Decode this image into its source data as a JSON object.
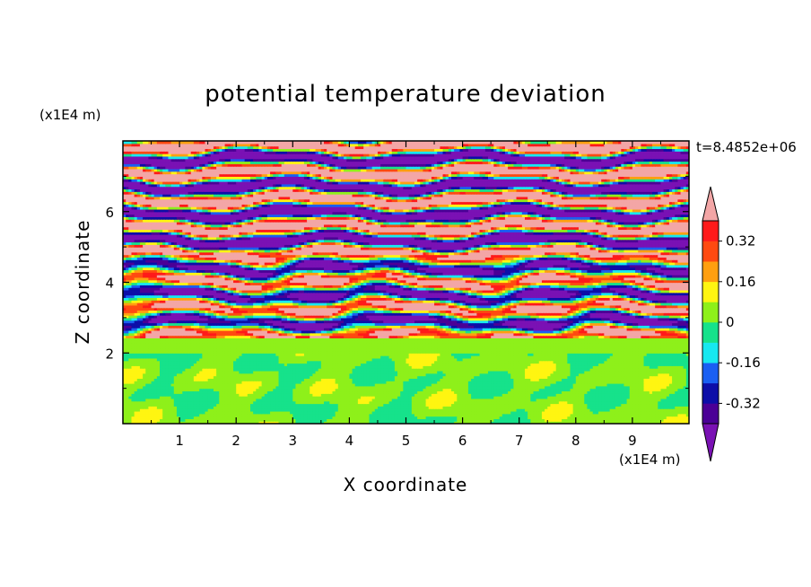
{
  "chart_data": {
    "type": "heatmap",
    "title": "potential temperature deviation",
    "xlabel": "X coordinate",
    "ylabel": "Z coordinate",
    "x_unit": "(x1E4 m)",
    "y_unit": "(x1E4 m)",
    "time_label": "t=8.4852e+06",
    "xlim": [
      0,
      10
    ],
    "ylim": [
      0,
      8
    ],
    "x_ticks": [
      1,
      2,
      3,
      4,
      5,
      6,
      7,
      8,
      9
    ],
    "y_ticks": [
      2,
      4,
      6
    ],
    "x_tick_labels": [
      "1",
      "2",
      "3",
      "4",
      "5",
      "6",
      "7",
      "8",
      "9"
    ],
    "y_tick_labels": [
      "2",
      "4",
      "6"
    ],
    "colorbar": {
      "levels": [
        -0.4,
        -0.32,
        -0.24,
        -0.16,
        -0.08,
        0,
        0.08,
        0.16,
        0.24,
        0.32,
        0.4
      ],
      "colors": [
        "#7a11b4",
        "#4b0096",
        "#0d0ea8",
        "#1a5ff2",
        "#17e8f0",
        "#16e28b",
        "#8ef01a",
        "#fff511",
        "#ff9f10",
        "#ff4a11",
        "#ff1a1a",
        "#f3a6a6"
      ],
      "under_color": "#7a11b4",
      "over_color": "#f3a6a6",
      "labels": [
        "0.32",
        "0.16",
        "0",
        "-0.16",
        "-0.32"
      ],
      "label_values": [
        0.32,
        0.16,
        0,
        -0.16,
        -0.32
      ]
    },
    "field_description_regions": [
      {
        "z_range": [
          0,
          2.0
        ],
        "dominant": [
          "#16e28b",
          "#8ef01a"
        ]
      },
      {
        "z_range": [
          2.0,
          2.4
        ],
        "dominant": [
          "#16e28b"
        ]
      },
      {
        "z_range": [
          2.4,
          4.8
        ],
        "dominant": [
          "#7a11b4",
          "#f3a6a6",
          "#1a5ff2",
          "#17e8f0"
        ]
      },
      {
        "z_range": [
          4.8,
          8.0
        ],
        "dominant": [
          "#7a11b4",
          "#f3a6a6"
        ]
      }
    ]
  }
}
